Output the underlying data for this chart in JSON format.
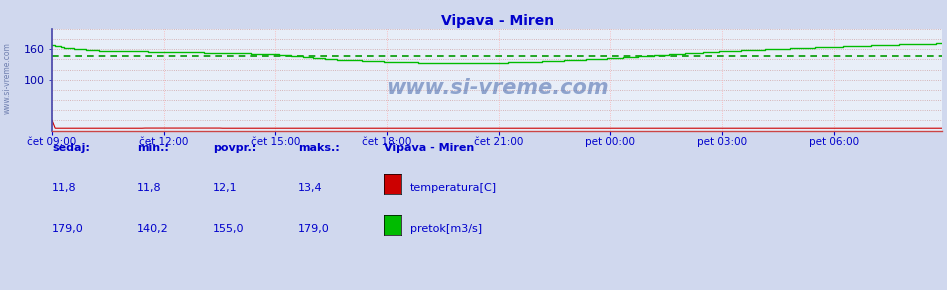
{
  "title": "Vipava - Miren",
  "title_color": "#0000cc",
  "bg_color": "#d0d8ee",
  "plot_bg_color": "#e8eef8",
  "grid_color_h": "#cc9999",
  "grid_color_v": "#ffaaaa",
  "xlabel_color": "#0000cc",
  "ylabel_color": "#0000aa",
  "watermark": "www.si-vreme.com",
  "xlim": [
    0,
    287
  ],
  "ylim": [
    0,
    200
  ],
  "ytick_positions": [
    100,
    160
  ],
  "ytick_labels": [
    "100",
    "160"
  ],
  "xtick_labels": [
    "čet 09:00",
    "čet 12:00",
    "čet 15:00",
    "čet 18:00",
    "čet 21:00",
    "pet 00:00",
    "pet 03:00",
    "pet 06:00"
  ],
  "xtick_positions": [
    0,
    36,
    72,
    108,
    144,
    180,
    216,
    252
  ],
  "pretok_avg": 147.0,
  "temperatura_color": "#cc0000",
  "pretok_color": "#00bb00",
  "pretok_avg_color": "#009900",
  "legend_title": "Vipava - Miren",
  "stats_col1_label": "sedaj:",
  "stats_col2_label": "min.:",
  "stats_col3_label": "povpr.:",
  "stats_col4_label": "maks.:",
  "temperatura_stats_str": [
    "11,8",
    "11,8",
    "12,1",
    "13,4"
  ],
  "pretok_stats_str": [
    "179,0",
    "140,2",
    "155,0",
    "179,0"
  ],
  "temperatura_label": "temperatura[C]",
  "pretok_label": "pretok[m3/s]",
  "left_watermark": "www.si-vreme.com",
  "spine_color": "#4444aa"
}
